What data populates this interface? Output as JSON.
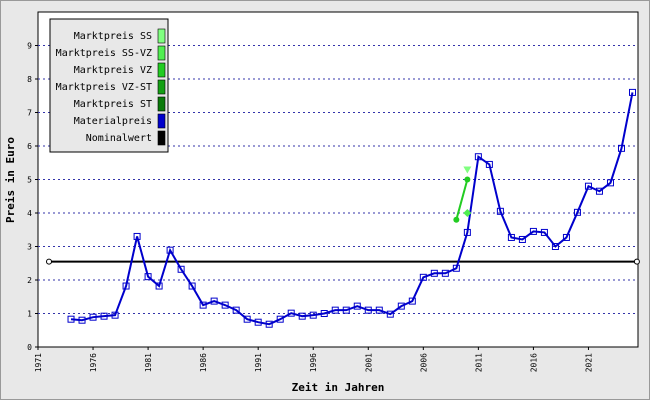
{
  "chart_data": {
    "type": "line",
    "xlabel": "Zeit in Jahren",
    "ylabel": "Preis in Euro",
    "xlim": [
      1971,
      2025.5
    ],
    "ylim": [
      0,
      10
    ],
    "xticks": [
      1971,
      1976,
      1981,
      1986,
      1991,
      1996,
      2001,
      2006,
      2011,
      2016,
      2021
    ],
    "yticks": [
      0,
      1,
      2,
      3,
      4,
      5,
      6,
      7,
      8,
      9
    ],
    "grid": true,
    "legend": "upper left",
    "series": [
      {
        "name": "Marktpreis SS",
        "color": "#80ff80",
        "marker": "triangle-down",
        "x": [
          2010
        ],
        "values": [
          5.3
        ]
      },
      {
        "name": "Marktpreis SS-VZ",
        "color": "#50ee50",
        "marker": "diamond",
        "x": [
          2010
        ],
        "values": [
          4.0
        ]
      },
      {
        "name": "Marktpreis VZ",
        "color": "#22cc22",
        "marker": "circle",
        "x": [
          2009,
          2010
        ],
        "values": [
          3.8,
          5.0
        ]
      },
      {
        "name": "Marktpreis VZ-ST",
        "color": "#14a014",
        "marker": "triangle-up",
        "x": [],
        "values": []
      },
      {
        "name": "Marktpreis ST",
        "color": "#0a7a0a",
        "marker": "circle",
        "x": [],
        "values": []
      },
      {
        "name": "Materialpreis",
        "color": "#0000cc",
        "marker": "square",
        "x": [
          1974,
          1975,
          1976,
          1977,
          1978,
          1979,
          1980,
          1981,
          1982,
          1983,
          1984,
          1985,
          1986,
          1987,
          1988,
          1989,
          1990,
          1991,
          1992,
          1993,
          1994,
          1995,
          1996,
          1997,
          1998,
          1999,
          2000,
          2001,
          2002,
          2003,
          2004,
          2005,
          2006,
          2007,
          2008,
          2009,
          2010,
          2011,
          2012,
          2013,
          2014,
          2015,
          2016,
          2017,
          2018,
          2019,
          2020,
          2021,
          2022,
          2023,
          2024,
          2025
        ],
        "values": [
          0.83,
          0.8,
          0.89,
          0.92,
          0.95,
          1.82,
          3.3,
          2.1,
          1.82,
          2.89,
          2.32,
          1.82,
          1.25,
          1.37,
          1.25,
          1.1,
          0.83,
          0.74,
          0.68,
          0.83,
          1.01,
          0.92,
          0.95,
          1.0,
          1.1,
          1.1,
          1.22,
          1.1,
          1.1,
          0.98,
          1.22,
          1.37,
          2.08,
          2.2,
          2.2,
          2.35,
          3.42,
          5.68,
          5.45,
          4.05,
          3.27,
          3.21,
          3.45,
          3.42,
          3.0,
          3.27,
          4.02,
          4.8,
          4.65,
          4.9,
          5.93,
          7.6
        ]
      },
      {
        "name": "Nominalwert",
        "color": "#000000",
        "marker": "circle-open",
        "x": [
          1972,
          2025.4
        ],
        "values": [
          2.55,
          2.55
        ]
      }
    ]
  }
}
